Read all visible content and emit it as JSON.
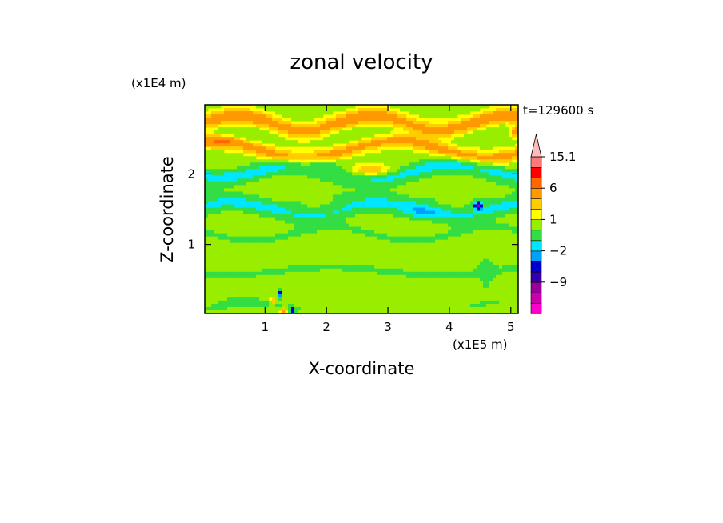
{
  "chart_data": {
    "type": "heatmap",
    "title": "zonal velocity",
    "xlabel": "X-coordinate",
    "ylabel": "Z-coordinate",
    "x_scale_label": "(x1E5 m)",
    "y_scale_label": "(x1E4 m)",
    "time_label": "t=129600 s",
    "xlim": [
      0.02,
      5.12
    ],
    "ylim": [
      0.02,
      2.98
    ],
    "x_ticks": [
      {
        "value": 1,
        "label": "1"
      },
      {
        "value": 2,
        "label": "2"
      },
      {
        "value": 3,
        "label": "3"
      },
      {
        "value": 4,
        "label": "4"
      },
      {
        "value": 5,
        "label": "5"
      }
    ],
    "y_ticks": [
      {
        "value": 1,
        "label": "1"
      },
      {
        "value": 2,
        "label": "2"
      }
    ],
    "colorbar": {
      "levels": [
        -15,
        -12,
        -9,
        -6,
        -3,
        -2,
        -1,
        0,
        1,
        2,
        3,
        6,
        9,
        12,
        15.1
      ],
      "colors": [
        "#ff00cc",
        "#cc00aa",
        "#990099",
        "#3300aa",
        "#0000cc",
        "#00a0ff",
        "#00e6ff",
        "#33dd44",
        "#99ee00",
        "#ffff00",
        "#ffcc00",
        "#ff9900",
        "#ff6600",
        "#ff0000",
        "#ff7777",
        "#ffbbbb"
      ],
      "labels": [
        {
          "value": 15.1,
          "label": "15.1"
        },
        {
          "value": 6,
          "label": "6"
        },
        {
          "value": 1,
          "label": "1"
        },
        {
          "value": -2,
          "label": "−2"
        },
        {
          "value": -9,
          "label": "−9"
        }
      ],
      "extend": "max"
    },
    "field": {
      "background": 0.5,
      "bands": [
        {
          "z": 2.72,
          "amp": 0.1,
          "wl": 2.2,
          "thick": 0.12,
          "v": 3.5
        },
        {
          "z": 2.35,
          "amp": 0.12,
          "wl": 3.0,
          "thick": 0.1,
          "v": 3.0
        },
        {
          "z": 2.62,
          "amp": 0.08,
          "wl": 1.8,
          "thick": 0.13,
          "v": -0.6
        },
        {
          "z": 2.05,
          "amp": 0.1,
          "wl": 2.5,
          "thick": 0.1,
          "v": -1.5
        },
        {
          "z": 1.95,
          "amp": 0.12,
          "wl": 2.8,
          "thick": 0.15,
          "v": -0.5
        },
        {
          "z": 1.5,
          "amp": 0.1,
          "wl": 2.4,
          "thick": 0.12,
          "v": -1.5
        },
        {
          "z": 1.6,
          "amp": 0.08,
          "wl": 2.0,
          "thick": 0.1,
          "v": -0.4
        },
        {
          "z": 1.15,
          "amp": 0.1,
          "wl": 2.6,
          "thick": 0.1,
          "v": -0.6
        },
        {
          "z": 0.62,
          "amp": 0.06,
          "wl": 3.5,
          "thick": 0.1,
          "v": -0.6
        },
        {
          "z": 0.12,
          "amp": 0.05,
          "wl": 2.0,
          "thick": 0.07,
          "v": -0.5
        }
      ],
      "blobs": [
        {
          "x": 4.47,
          "z": 1.55,
          "rx": 0.05,
          "rz": 0.05,
          "v": -9
        },
        {
          "x": 1.45,
          "z": 0.05,
          "rx": 0.04,
          "rz": 0.06,
          "v": -6
        },
        {
          "x": 1.25,
          "z": 0.3,
          "rx": 0.03,
          "rz": 0.06,
          "v": -4
        },
        {
          "x": 1.12,
          "z": 0.2,
          "rx": 0.03,
          "rz": 0.05,
          "v": 4
        },
        {
          "x": 1.3,
          "z": 0.05,
          "rx": 0.04,
          "rz": 0.04,
          "v": 5
        },
        {
          "x": 2.7,
          "z": 2.05,
          "rx": 0.35,
          "rz": 0.08,
          "v": 3
        },
        {
          "x": 5.1,
          "z": 2.6,
          "rx": 0.12,
          "rz": 0.08,
          "v": 4
        },
        {
          "x": 0.3,
          "z": 2.45,
          "rx": 0.25,
          "rz": 0.07,
          "v": 3.5
        },
        {
          "x": 4.6,
          "z": 0.6,
          "rx": 0.12,
          "rz": 0.3,
          "v": -0.8
        },
        {
          "x": 3.55,
          "z": 1.45,
          "rx": 0.35,
          "rz": 0.08,
          "v": -1.5
        },
        {
          "x": 0.6,
          "z": 0.18,
          "rx": 0.4,
          "rz": 0.1,
          "v": -0.6
        }
      ]
    }
  }
}
